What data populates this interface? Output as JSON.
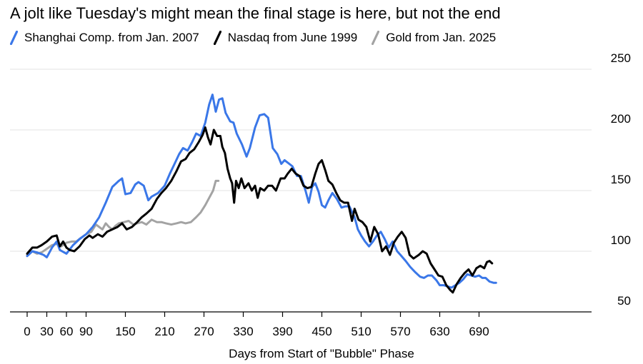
{
  "chart_data": {
    "type": "line",
    "title": "A jolt like Tuesday's might mean the final stage is here, but not the end",
    "xlabel": "Days from Start of \"Bubble\" Phase",
    "ylabel": "",
    "xlim": [
      -5,
      720
    ],
    "ylim": [
      50,
      250
    ],
    "x_ticks": [
      0,
      30,
      60,
      90,
      150,
      210,
      270,
      330,
      390,
      450,
      510,
      570,
      630,
      690
    ],
    "y_ticks": [
      50,
      100,
      150,
      200,
      250
    ],
    "y_axis_side": "right",
    "grid": "horizontal",
    "legend_position": "top-left",
    "series": [
      {
        "name": "Shanghai Comp. from Jan. 2007",
        "color": "#3a77e8",
        "points": [
          [
            0,
            96
          ],
          [
            8,
            100
          ],
          [
            15,
            99
          ],
          [
            25,
            97
          ],
          [
            30,
            95
          ],
          [
            38,
            103
          ],
          [
            45,
            108
          ],
          [
            50,
            101
          ],
          [
            60,
            98
          ],
          [
            70,
            105
          ],
          [
            80,
            110
          ],
          [
            90,
            114
          ],
          [
            100,
            120
          ],
          [
            110,
            128
          ],
          [
            120,
            140
          ],
          [
            130,
            153
          ],
          [
            140,
            158
          ],
          [
            145,
            160
          ],
          [
            150,
            147
          ],
          [
            158,
            148
          ],
          [
            165,
            155
          ],
          [
            170,
            157
          ],
          [
            178,
            154
          ],
          [
            185,
            142
          ],
          [
            190,
            145
          ],
          [
            200,
            148
          ],
          [
            210,
            154
          ],
          [
            218,
            164
          ],
          [
            225,
            172
          ],
          [
            232,
            180
          ],
          [
            238,
            185
          ],
          [
            245,
            183
          ],
          [
            252,
            190
          ],
          [
            258,
            197
          ],
          [
            265,
            195
          ],
          [
            272,
            206
          ],
          [
            278,
            221
          ],
          [
            283,
            229
          ],
          [
            288,
            215
          ],
          [
            293,
            225
          ],
          [
            298,
            226
          ],
          [
            303,
            214
          ],
          [
            310,
            207
          ],
          [
            315,
            206
          ],
          [
            320,
            197
          ],
          [
            328,
            188
          ],
          [
            335,
            178
          ],
          [
            340,
            185
          ],
          [
            348,
            202
          ],
          [
            355,
            212
          ],
          [
            362,
            213
          ],
          [
            368,
            210
          ],
          [
            375,
            185
          ],
          [
            382,
            180
          ],
          [
            388,
            172
          ],
          [
            393,
            175
          ],
          [
            398,
            173
          ],
          [
            405,
            170
          ],
          [
            412,
            162
          ],
          [
            418,
            162
          ],
          [
            425,
            150
          ],
          [
            430,
            140
          ],
          [
            435,
            153
          ],
          [
            440,
            156
          ],
          [
            445,
            149
          ],
          [
            450,
            138
          ],
          [
            455,
            136
          ],
          [
            460,
            142
          ],
          [
            466,
            148
          ],
          [
            473,
            143
          ],
          [
            480,
            136
          ],
          [
            486,
            137
          ],
          [
            492,
            137
          ],
          [
            500,
            128
          ],
          [
            505,
            118
          ],
          [
            510,
            113
          ],
          [
            516,
            108
          ],
          [
            522,
            104
          ],
          [
            528,
            108
          ],
          [
            534,
            113
          ],
          [
            540,
            116
          ],
          [
            546,
            110
          ],
          [
            552,
            103
          ],
          [
            558,
            108
          ],
          [
            565,
            100
          ],
          [
            570,
            97
          ],
          [
            578,
            92
          ],
          [
            585,
            87
          ],
          [
            592,
            83
          ],
          [
            600,
            79
          ],
          [
            606,
            78
          ],
          [
            612,
            80
          ],
          [
            618,
            80
          ],
          [
            625,
            76
          ],
          [
            630,
            72
          ],
          [
            636,
            72
          ],
          [
            642,
            71
          ],
          [
            648,
            70
          ],
          [
            654,
            72
          ],
          [
            660,
            74
          ],
          [
            666,
            77
          ],
          [
            672,
            81
          ],
          [
            678,
            80
          ],
          [
            684,
            79
          ],
          [
            690,
            80
          ],
          [
            695,
            78
          ],
          [
            700,
            78
          ],
          [
            706,
            75
          ],
          [
            712,
            74
          ],
          [
            716,
            74
          ]
        ]
      },
      {
        "name": "Nasdaq from June 1999",
        "color": "#000000",
        "points": [
          [
            0,
            98
          ],
          [
            8,
            103
          ],
          [
            15,
            103
          ],
          [
            22,
            105
          ],
          [
            30,
            108
          ],
          [
            38,
            112
          ],
          [
            45,
            113
          ],
          [
            50,
            104
          ],
          [
            55,
            108
          ],
          [
            60,
            103
          ],
          [
            65,
            101
          ],
          [
            72,
            100
          ],
          [
            80,
            104
          ],
          [
            88,
            110
          ],
          [
            95,
            113
          ],
          [
            100,
            111
          ],
          [
            108,
            114
          ],
          [
            115,
            112
          ],
          [
            122,
            116
          ],
          [
            130,
            118
          ],
          [
            138,
            120
          ],
          [
            145,
            123
          ],
          [
            152,
            118
          ],
          [
            160,
            120
          ],
          [
            168,
            124
          ],
          [
            175,
            128
          ],
          [
            182,
            131
          ],
          [
            190,
            135
          ],
          [
            198,
            143
          ],
          [
            205,
            148
          ],
          [
            212,
            152
          ],
          [
            220,
            158
          ],
          [
            228,
            166
          ],
          [
            235,
            174
          ],
          [
            242,
            176
          ],
          [
            248,
            181
          ],
          [
            255,
            184
          ],
          [
            262,
            190
          ],
          [
            268,
            196
          ],
          [
            272,
            202
          ],
          [
            276,
            194
          ],
          [
            280,
            188
          ],
          [
            285,
            200
          ],
          [
            290,
            195
          ],
          [
            295,
            195
          ],
          [
            298,
            186
          ],
          [
            302,
            181
          ],
          [
            306,
            168
          ],
          [
            310,
            160
          ],
          [
            313,
            156
          ],
          [
            316,
            140
          ],
          [
            319,
            158
          ],
          [
            323,
            152
          ],
          [
            327,
            160
          ],
          [
            332,
            152
          ],
          [
            338,
            156
          ],
          [
            343,
            150
          ],
          [
            348,
            154
          ],
          [
            352,
            144
          ],
          [
            356,
            152
          ],
          [
            362,
            150
          ],
          [
            368,
            154
          ],
          [
            374,
            154
          ],
          [
            380,
            150
          ],
          [
            387,
            160
          ],
          [
            393,
            160
          ],
          [
            398,
            164
          ],
          [
            404,
            168
          ],
          [
            410,
            164
          ],
          [
            416,
            162
          ],
          [
            422,
            154
          ],
          [
            428,
            152
          ],
          [
            434,
            153
          ],
          [
            440,
            164
          ],
          [
            445,
            172
          ],
          [
            450,
            175
          ],
          [
            455,
            167
          ],
          [
            460,
            158
          ],
          [
            466,
            155
          ],
          [
            472,
            148
          ],
          [
            478,
            142
          ],
          [
            484,
            140
          ],
          [
            490,
            140
          ],
          [
            496,
            125
          ],
          [
            500,
            135
          ],
          [
            506,
            126
          ],
          [
            512,
            124
          ],
          [
            518,
            120
          ],
          [
            524,
            108
          ],
          [
            530,
            120
          ],
          [
            536,
            114
          ],
          [
            542,
            100
          ],
          [
            548,
            104
          ],
          [
            554,
            97
          ],
          [
            560,
            107
          ],
          [
            566,
            112
          ],
          [
            572,
            116
          ],
          [
            578,
            111
          ],
          [
            584,
            97
          ],
          [
            590,
            94
          ],
          [
            598,
            97
          ],
          [
            604,
            100
          ],
          [
            610,
            98
          ],
          [
            616,
            90
          ],
          [
            622,
            85
          ],
          [
            628,
            80
          ],
          [
            634,
            79
          ],
          [
            640,
            72
          ],
          [
            646,
            68
          ],
          [
            650,
            66
          ],
          [
            656,
            73
          ],
          [
            662,
            78
          ],
          [
            668,
            82
          ],
          [
            674,
            85
          ],
          [
            680,
            80
          ],
          [
            686,
            86
          ],
          [
            692,
            88
          ],
          [
            698,
            86
          ],
          [
            702,
            91
          ],
          [
            706,
            92
          ],
          [
            710,
            90
          ]
        ]
      },
      {
        "name": "Gold from Jan. 2025",
        "color": "#a3a3a3",
        "points": [
          [
            0,
            97
          ],
          [
            8,
            100
          ],
          [
            15,
            98
          ],
          [
            22,
            99
          ],
          [
            30,
            102
          ],
          [
            38,
            105
          ],
          [
            45,
            106
          ],
          [
            52,
            104
          ],
          [
            60,
            107
          ],
          [
            68,
            108
          ],
          [
            75,
            108
          ],
          [
            82,
            111
          ],
          [
            90,
            114
          ],
          [
            98,
            116
          ],
          [
            105,
            122
          ],
          [
            110,
            120
          ],
          [
            115,
            118
          ],
          [
            120,
            123
          ],
          [
            125,
            120
          ],
          [
            130,
            118
          ],
          [
            135,
            121
          ],
          [
            140,
            123
          ],
          [
            148,
            124
          ],
          [
            155,
            125
          ],
          [
            162,
            122
          ],
          [
            168,
            123
          ],
          [
            175,
            124
          ],
          [
            182,
            122
          ],
          [
            190,
            126
          ],
          [
            198,
            124
          ],
          [
            205,
            124
          ],
          [
            212,
            123
          ],
          [
            220,
            122
          ],
          [
            228,
            123
          ],
          [
            235,
            124
          ],
          [
            242,
            123
          ],
          [
            250,
            124
          ],
          [
            258,
            128
          ],
          [
            265,
            132
          ],
          [
            272,
            138
          ],
          [
            278,
            144
          ],
          [
            284,
            150
          ],
          [
            288,
            158
          ],
          [
            292,
            158
          ]
        ]
      }
    ]
  }
}
